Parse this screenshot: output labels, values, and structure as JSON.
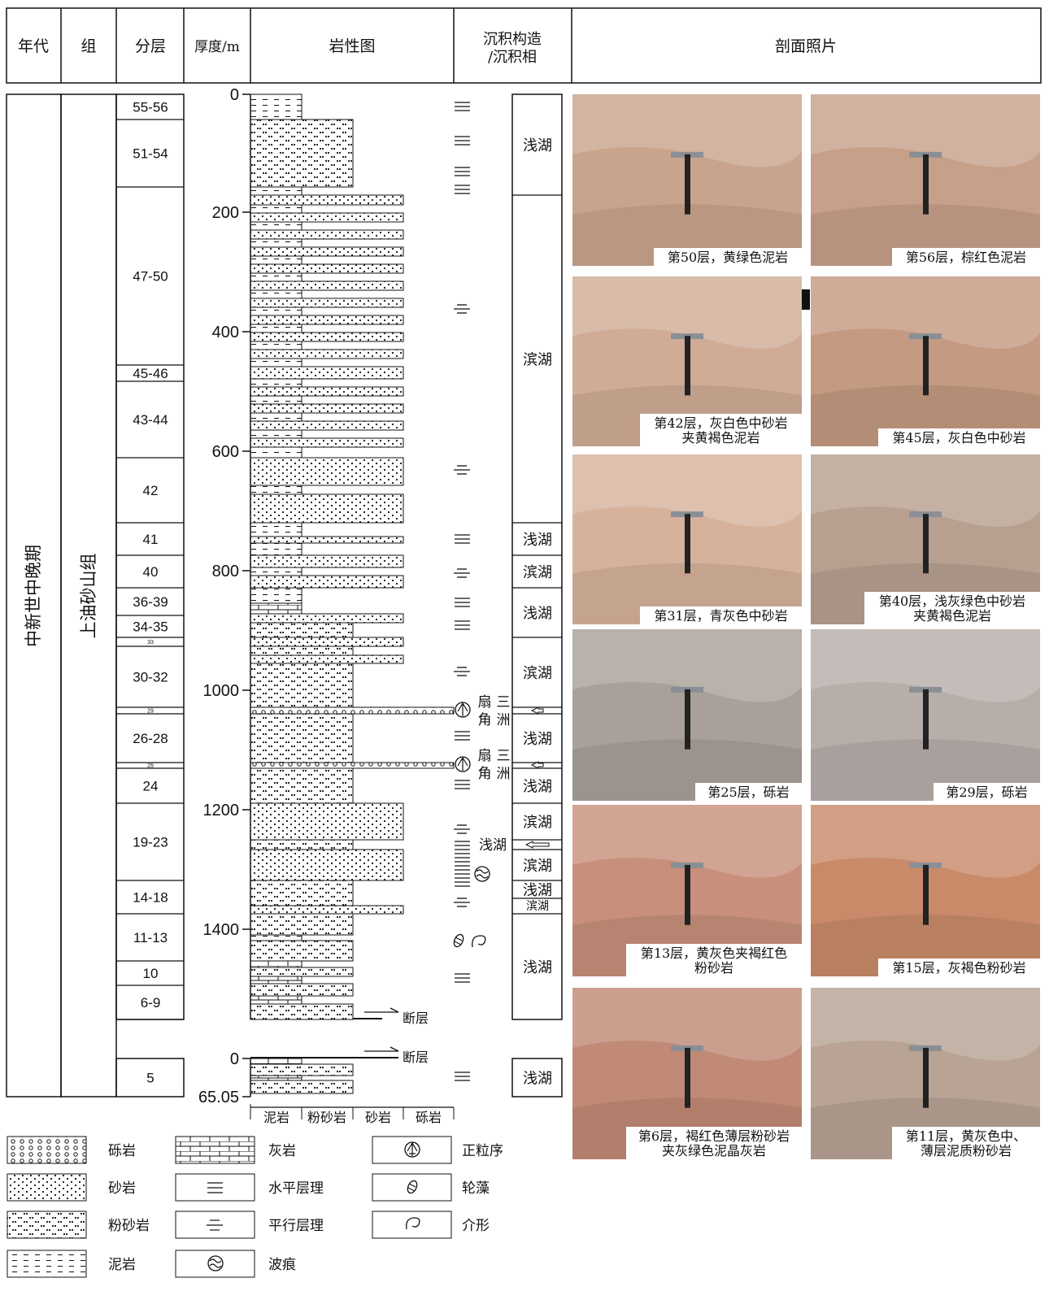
{
  "header": {
    "era": "年代",
    "formation": "组",
    "layers": "分层",
    "thickness": "厚度/m",
    "lithology": "岩性图",
    "structure_line1": "沉积构造",
    "structure_line2": "/沉积相",
    "photos": "剖面照片"
  },
  "era_value": "中新世中晚期",
  "formation_value": "上油砂山组",
  "layers": [
    "55-56",
    "51-54",
    "47-50",
    "45-46",
    "43-44",
    "42",
    "41",
    "40",
    "36-39",
    "34-35",
    "33",
    "30-32",
    "29",
    "26-28",
    "25",
    "24",
    "19-23",
    "14-18",
    "11-13",
    "10",
    "6-9",
    "5"
  ],
  "scale_ticks": [
    "0",
    "200",
    "400",
    "600",
    "800",
    "1000",
    "1200",
    "1400",
    "0",
    "65.05"
  ],
  "lith_axis": [
    "泥岩",
    "粉砂岩",
    "砂岩",
    "砾岩"
  ],
  "facies": [
    "浅湖",
    "滨湖",
    "浅湖",
    "滨湖",
    "浅湖",
    "滨湖",
    "浅湖",
    "浅湖",
    "滨湖",
    "浅湖",
    "滨湖",
    "浅湖",
    "滨湖",
    "浅湖",
    "浅湖"
  ],
  "fan_delta": [
    "扇三角洲",
    "扇三角洲"
  ],
  "fan_delta_parts": [
    [
      "扇",
      "三",
      "角",
      "洲"
    ],
    [
      "扇",
      "三",
      "角",
      "洲"
    ]
  ],
  "side_labels": {
    "shallow_lake": "浅湖",
    "fault": "断层"
  },
  "photos": [
    {
      "caption": [
        "第50层，黄绿色泥岩"
      ]
    },
    {
      "caption": [
        "第56层，棕红色泥岩"
      ]
    },
    {
      "caption": [
        "第42层，灰白色中砂岩",
        "夹黄褐色泥岩"
      ]
    },
    {
      "caption": [
        "第45层，灰白色中砂岩"
      ]
    },
    {
      "caption": [
        "第31层，青灰色中砂岩"
      ]
    },
    {
      "caption": [
        "第40层，浅灰绿色中砂岩",
        "夹黄褐色泥岩"
      ]
    },
    {
      "caption": [
        "第25层，砾岩"
      ]
    },
    {
      "caption": [
        "第29层，砾岩"
      ]
    },
    {
      "caption": [
        "第13层，黄灰色夹褐红色",
        "粉砂岩"
      ]
    },
    {
      "caption": [
        "第15层，灰褐色粉砂岩"
      ]
    },
    {
      "caption": [
        "第6层，褐红色薄层粉砂岩",
        "夹灰绿色泥晶灰岩"
      ]
    },
    {
      "caption": [
        "第11层，黄灰色中、",
        "薄层泥质粉砂岩"
      ]
    }
  ],
  "legend": {
    "conglomerate": "砾岩",
    "sandstone": "砂岩",
    "siltstone": "粉砂岩",
    "mudstone": "泥岩",
    "limestone": "灰岩",
    "horizontal_bedding": "水平层理",
    "parallel_bedding": "平行层理",
    "ripple": "波痕",
    "normal_grading": "正粒序",
    "charophyte": "轮藻",
    "ostracod": "介形"
  },
  "colors": {
    "line": "#111111",
    "photo_tones": [
      "#c9a48c",
      "#c7a08a",
      "#d0ac96",
      "#c49a82",
      "#d6b29c",
      "#b8a090",
      "#a9a199",
      "#b7aeaa",
      "#c8907c",
      "#c98a6a",
      "#c08a76",
      "#b8a394"
    ]
  }
}
